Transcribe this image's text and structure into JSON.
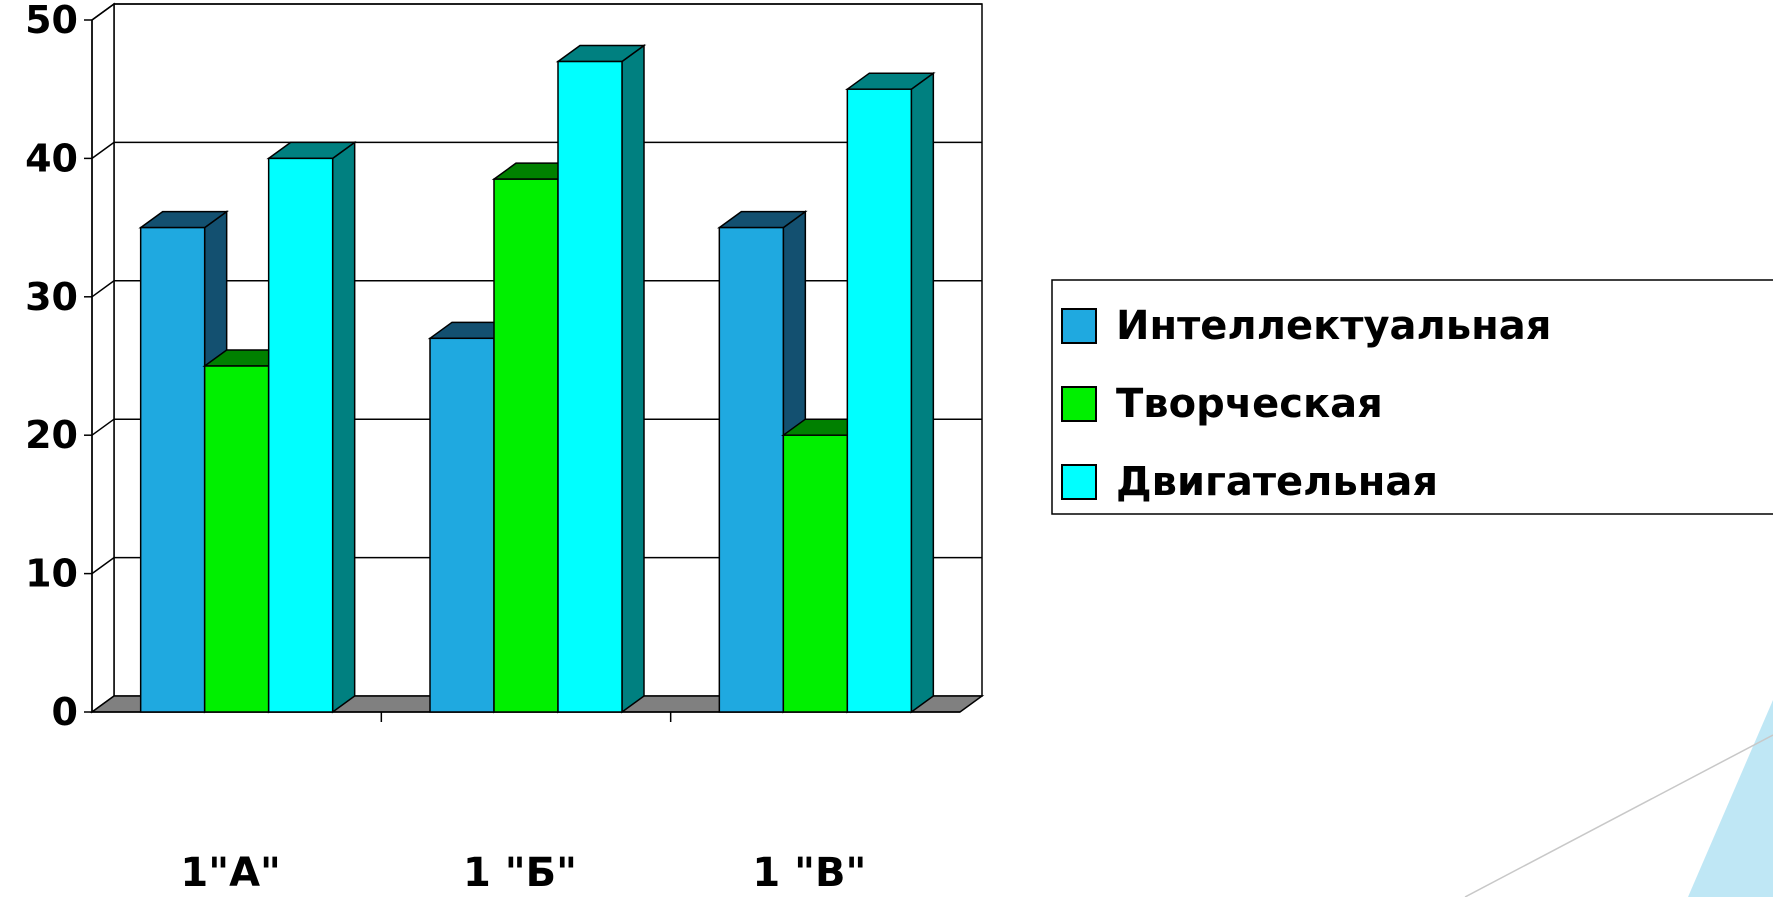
{
  "chart_data": {
    "type": "bar",
    "categories": [
      "1\"А\"",
      "1 \"Б\"",
      "1 \"В\""
    ],
    "series": [
      {
        "name": "Интеллектуальная",
        "values": [
          35,
          27,
          35
        ],
        "color": "#1fa9e0",
        "side_color": "#135070"
      },
      {
        "name": "Творческая",
        "values": [
          25,
          38.5,
          20
        ],
        "color": "#00f000",
        "side_color": "#008000"
      },
      {
        "name": "Двигательная",
        "values": [
          40,
          47,
          45
        ],
        "color": "#00ffff",
        "side_color": "#008080"
      }
    ],
    "ylim": [
      0,
      50
    ],
    "yticks": [
      0,
      10,
      20,
      30,
      40,
      50
    ],
    "grid": true,
    "legend_position": "right",
    "style": "3d-columns"
  }
}
